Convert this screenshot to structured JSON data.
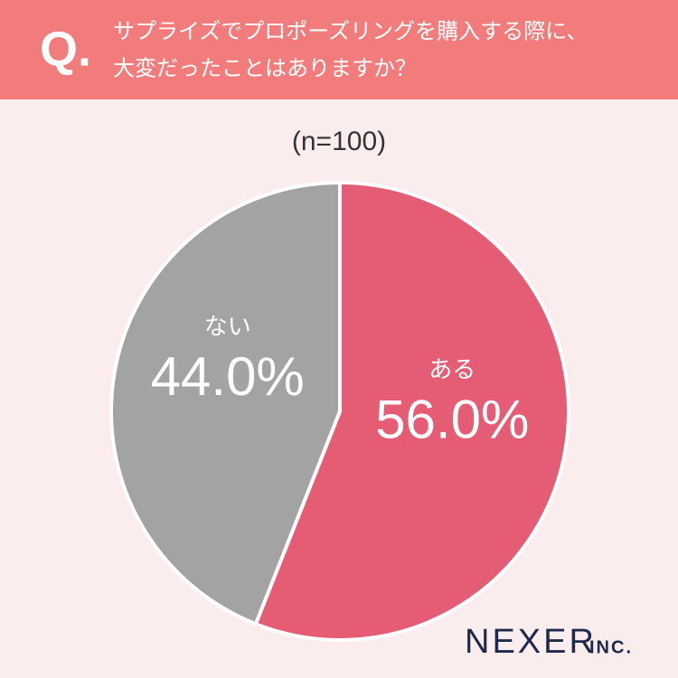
{
  "q_mark": "Q.",
  "chart_data": {
    "type": "pie",
    "title": [
      "サプライズでプロポーズリングを購入する際に、",
      "大変だったことはありますか？"
    ],
    "subtitle": "(n=100)",
    "categories": [
      "ある",
      "ない"
    ],
    "values": [
      56.0,
      44.0
    ],
    "value_labels": [
      "56.0%",
      "44.0%"
    ],
    "colors": [
      "#e55c75",
      "#a3a3a3"
    ]
  },
  "brand": {
    "name": "NEXER",
    "suffix": "INC."
  }
}
